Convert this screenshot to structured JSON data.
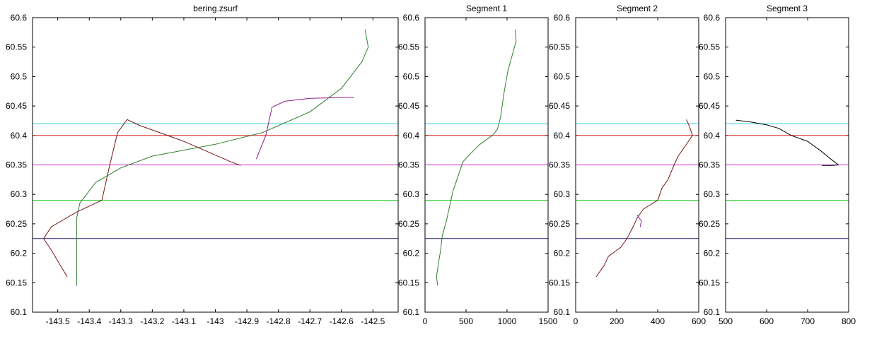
{
  "chart_data": [
    {
      "type": "line",
      "title": "bering.zsurf",
      "xlim": [
        -143.58,
        -142.42
      ],
      "ylim": [
        60.1,
        60.6
      ],
      "xticks": [
        -143.5,
        -143.4,
        -143.3,
        -143.2,
        -143.1,
        -143,
        -142.9,
        -142.8,
        -142.7,
        -142.6,
        -142.5
      ],
      "xtick_labels": [
        "-143.5",
        "-143.4",
        "-143.3",
        "-143.2",
        "-143.1",
        "-143",
        "-142.9",
        "-142.8",
        "-142.7",
        "-142.6",
        "-142.5"
      ],
      "yticks": [
        60.1,
        60.15,
        60.2,
        60.25,
        60.3,
        60.35,
        60.4,
        60.45,
        60.5,
        60.55,
        60.6
      ],
      "ytick_labels": [
        "60.1",
        "60.15",
        "60.2",
        "60.25",
        "60.3",
        "60.35",
        "60.4",
        "60.45",
        "60.5",
        "60.55",
        "60.6"
      ],
      "hlines": [
        {
          "y": 60.42,
          "color": "#33ccdd"
        },
        {
          "y": 60.4,
          "color": "#dd2222"
        },
        {
          "y": 60.35,
          "color": "#cc22cc"
        },
        {
          "y": 60.29,
          "color": "#22cc22"
        },
        {
          "y": 60.225,
          "color": "#22226e"
        }
      ],
      "series": [
        {
          "color": "#2f7d2f",
          "points": [
            [
              -143.44,
              60.145
            ],
            [
              -143.44,
              60.2
            ],
            [
              -143.44,
              60.26
            ],
            [
              -143.43,
              60.285
            ],
            [
              -143.38,
              60.32
            ],
            [
              -143.3,
              60.345
            ],
            [
              -143.2,
              60.365
            ],
            [
              -143.0,
              60.385
            ],
            [
              -142.85,
              60.405
            ],
            [
              -142.7,
              60.44
            ],
            [
              -142.6,
              60.48
            ],
            [
              -142.535,
              60.525
            ],
            [
              -142.515,
              60.55
            ],
            [
              -142.525,
              60.58
            ]
          ]
        },
        {
          "color": "#7a1515",
          "points": [
            [
              -143.47,
              60.16
            ],
            [
              -143.52,
              60.205
            ],
            [
              -143.545,
              60.225
            ],
            [
              -143.52,
              60.245
            ],
            [
              -143.44,
              60.27
            ],
            [
              -143.36,
              60.29
            ],
            [
              -143.335,
              60.35
            ],
            [
              -143.31,
              60.405
            ],
            [
              -143.28,
              60.427
            ],
            [
              -143.24,
              60.417
            ],
            [
              -143.1,
              60.39
            ],
            [
              -142.95,
              60.355
            ],
            [
              -142.92,
              60.349
            ]
          ]
        },
        {
          "color": "#8a1a8a",
          "points": [
            [
              -142.87,
              60.36
            ],
            [
              -142.84,
              60.4
            ],
            [
              -142.82,
              60.448
            ],
            [
              -142.78,
              60.458
            ],
            [
              -142.7,
              60.463
            ],
            [
              -142.56,
              60.465
            ]
          ]
        }
      ]
    },
    {
      "type": "line",
      "title": "Segment 1",
      "xlim": [
        0,
        1500
      ],
      "ylim": [
        60.1,
        60.6
      ],
      "xticks": [
        0,
        500,
        1000,
        1500
      ],
      "xtick_labels": [
        "0",
        "500",
        "1000",
        "1500"
      ],
      "yticks": [
        60.1,
        60.15,
        60.2,
        60.25,
        60.3,
        60.35,
        60.4,
        60.45,
        60.5,
        60.55,
        60.6
      ],
      "ytick_labels": [
        "60.1",
        "60.15",
        "60.2",
        "60.25",
        "60.3",
        "60.35",
        "60.4",
        "60.45",
        "60.5",
        "60.55",
        "60.6"
      ],
      "hlines": [
        {
          "y": 60.42,
          "color": "#33ccdd"
        },
        {
          "y": 60.4,
          "color": "#dd2222"
        },
        {
          "y": 60.35,
          "color": "#cc22cc"
        },
        {
          "y": 60.29,
          "color": "#22cc22"
        },
        {
          "y": 60.225,
          "color": "#22226e"
        }
      ],
      "series": [
        {
          "color": "#2f7d2f",
          "points": [
            [
              155,
              60.145
            ],
            [
              140,
              60.16
            ],
            [
              160,
              60.18
            ],
            [
              190,
              60.205
            ],
            [
              210,
              60.23
            ],
            [
              260,
              60.255
            ],
            [
              300,
              60.28
            ],
            [
              340,
              60.305
            ],
            [
              400,
              60.33
            ],
            [
              460,
              60.355
            ],
            [
              560,
              60.37
            ],
            [
              670,
              60.385
            ],
            [
              820,
              60.4
            ],
            [
              880,
              60.41
            ],
            [
              920,
              60.43
            ],
            [
              960,
              60.47
            ],
            [
              1010,
              60.51
            ],
            [
              1060,
              60.535
            ],
            [
              1110,
              60.56
            ],
            [
              1100,
              60.58
            ]
          ]
        }
      ]
    },
    {
      "type": "line",
      "title": "Segment 2",
      "xlim": [
        0,
        600
      ],
      "ylim": [
        60.1,
        60.6
      ],
      "xticks": [
        0,
        200,
        400,
        600
      ],
      "xtick_labels": [
        "0",
        "200",
        "400",
        "600"
      ],
      "yticks": [
        60.1,
        60.15,
        60.2,
        60.25,
        60.3,
        60.35,
        60.4,
        60.45,
        60.5,
        60.55,
        60.6
      ],
      "ytick_labels": [
        "60.1",
        "60.15",
        "60.2",
        "60.25",
        "60.3",
        "60.35",
        "60.4",
        "60.45",
        "60.5",
        "60.55",
        "60.6"
      ],
      "hlines": [
        {
          "y": 60.42,
          "color": "#33ccdd"
        },
        {
          "y": 60.4,
          "color": "#dd2222"
        },
        {
          "y": 60.35,
          "color": "#cc22cc"
        },
        {
          "y": 60.29,
          "color": "#22cc22"
        },
        {
          "y": 60.225,
          "color": "#22226e"
        }
      ],
      "series": [
        {
          "color": "#7a1515",
          "points": [
            [
              100,
              60.16
            ],
            [
              140,
              60.18
            ],
            [
              160,
              60.195
            ],
            [
              220,
              60.21
            ],
            [
              250,
              60.225
            ],
            [
              280,
              60.245
            ],
            [
              300,
              60.26
            ],
            [
              330,
              60.275
            ],
            [
              400,
              60.29
            ],
            [
              420,
              60.31
            ],
            [
              450,
              60.325
            ],
            [
              480,
              60.35
            ],
            [
              500,
              60.365
            ],
            [
              530,
              60.38
            ],
            [
              570,
              60.4
            ],
            [
              555,
              60.415
            ],
            [
              540,
              60.427
            ]
          ]
        },
        {
          "color": "#8a1a8a",
          "points": [
            [
              300,
              60.265
            ],
            [
              320,
              60.255
            ],
            [
              315,
              60.245
            ]
          ]
        }
      ]
    },
    {
      "type": "line",
      "title": "Segment 3",
      "xlim": [
        500,
        800
      ],
      "ylim": [
        60.1,
        60.6
      ],
      "xticks": [
        500,
        600,
        700,
        800
      ],
      "xtick_labels": [
        "500",
        "600",
        "700",
        "800"
      ],
      "yticks": [
        60.1,
        60.15,
        60.2,
        60.25,
        60.3,
        60.35,
        60.4,
        60.45,
        60.5,
        60.55,
        60.6
      ],
      "ytick_labels": [
        "60.1",
        "60.15",
        "60.2",
        "60.25",
        "60.3",
        "60.35",
        "60.4",
        "60.45",
        "60.5",
        "60.55",
        "60.6"
      ],
      "hlines": [
        {
          "y": 60.42,
          "color": "#33ccdd"
        },
        {
          "y": 60.4,
          "color": "#dd2222"
        },
        {
          "y": 60.35,
          "color": "#cc22cc"
        },
        {
          "y": 60.29,
          "color": "#22cc22"
        },
        {
          "y": 60.225,
          "color": "#22226e"
        }
      ],
      "series": [
        {
          "color": "#000000",
          "points": [
            [
              525,
              60.426
            ],
            [
              560,
              60.423
            ],
            [
              600,
              60.418
            ],
            [
              630,
              60.412
            ],
            [
              660,
              60.4
            ],
            [
              700,
              60.39
            ],
            [
              730,
              60.375
            ],
            [
              760,
              60.358
            ],
            [
              775,
              60.35
            ],
            [
              760,
              60.349
            ],
            [
              735,
              60.349
            ]
          ]
        }
      ]
    }
  ]
}
